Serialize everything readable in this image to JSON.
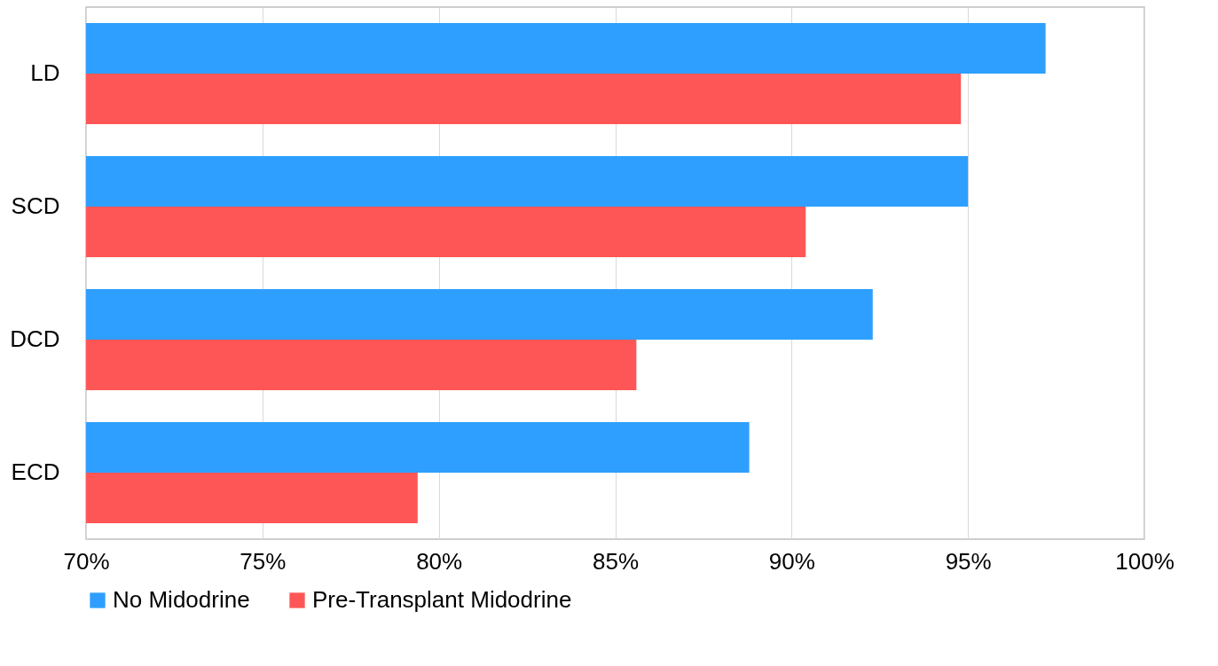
{
  "chart_data": {
    "type": "bar",
    "orientation": "horizontal",
    "categories": [
      "LD",
      "SCD",
      "DCD",
      "ECD"
    ],
    "series": [
      {
        "name": "No Midodrine",
        "color": "#2e9ffe",
        "values": [
          97.2,
          95.0,
          92.3,
          88.8
        ]
      },
      {
        "name": "Pre-Transplant Midodrine",
        "color": "#fe5656",
        "values": [
          94.8,
          90.4,
          85.6,
          79.4
        ]
      }
    ],
    "xlim": [
      70,
      100
    ],
    "xticks": [
      {
        "value": 70,
        "label": "70%"
      },
      {
        "value": 75,
        "label": "75%"
      },
      {
        "value": 80,
        "label": "80%"
      },
      {
        "value": 85,
        "label": "85%"
      },
      {
        "value": 90,
        "label": "90%"
      },
      {
        "value": 95,
        "label": "95%"
      },
      {
        "value": 100,
        "label": "100%"
      }
    ],
    "grid": "x",
    "legend": "bottom"
  }
}
